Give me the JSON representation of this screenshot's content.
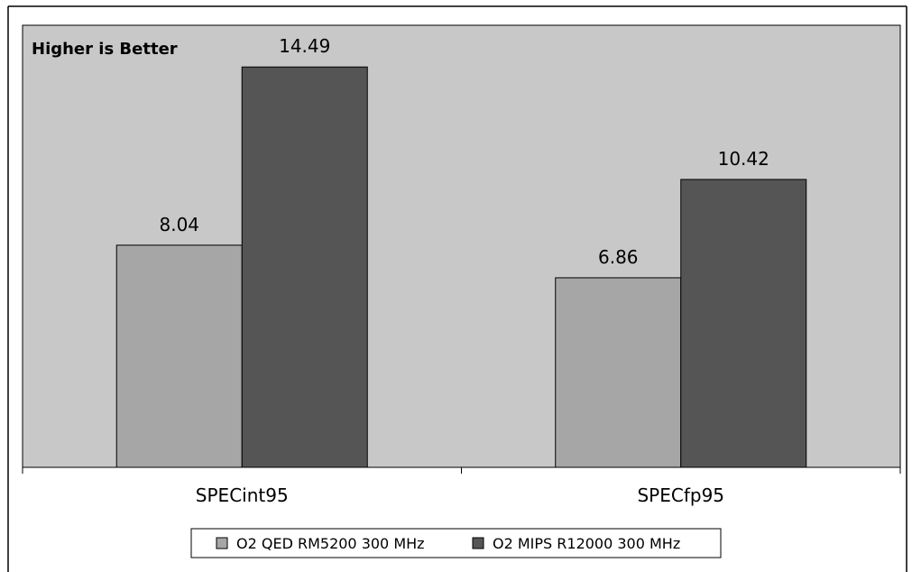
{
  "chart_data": {
    "type": "bar",
    "title": "",
    "annotation": "Higher is Better",
    "xlabel": "",
    "ylabel": "",
    "categories": [
      "SPECint95",
      "SPECfp95"
    ],
    "series": [
      {
        "name": "O2 QED RM5200 300 MHz",
        "values": [
          8.04,
          6.86
        ],
        "color": "#a6a6a6"
      },
      {
        "name": "O2 MIPS R12000 300 MHz",
        "values": [
          14.49,
          10.42
        ],
        "color": "#555555"
      }
    ],
    "value_labels": [
      [
        "8.04",
        "6.86"
      ],
      [
        "14.49",
        "10.42"
      ]
    ],
    "ylim": [
      0,
      16
    ],
    "grid": false,
    "legend_position": "bottom",
    "plot_background": "#c8c8c8"
  }
}
